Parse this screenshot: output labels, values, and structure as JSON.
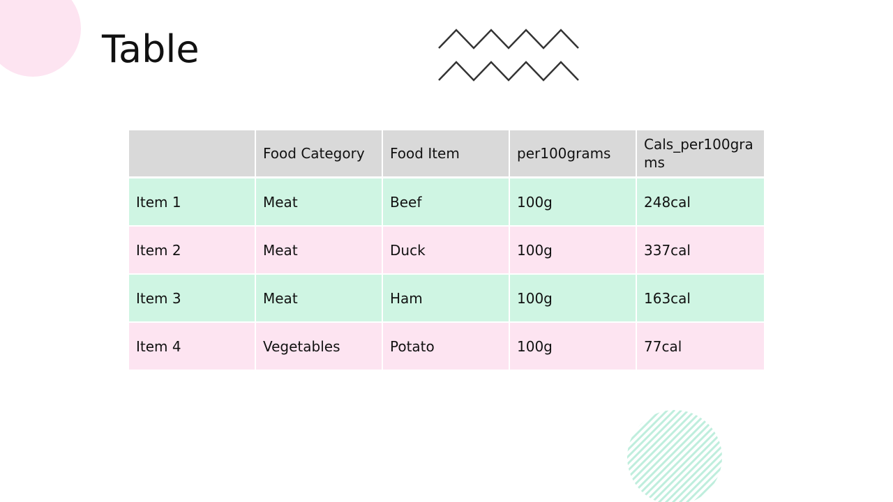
{
  "slide": {
    "title": "Table"
  },
  "colors": {
    "accent_pink": "#fde4f1",
    "accent_green": "#cff5e3",
    "header_gray": "#d9d9d9",
    "zigzag_stroke": "#333333",
    "hatch_green": "#bfeedd"
  },
  "icons": {
    "corner": "circle-decoration-icon",
    "zigzag": "zigzag-decoration-icon",
    "hatch": "hatched-circle-decoration-icon"
  },
  "table": {
    "headers": [
      "",
      "Food Category",
      "Food Item",
      "per100grams",
      "Cals_per100grams"
    ],
    "rows": [
      {
        "item": "Item 1",
        "category": "Meat",
        "food": "Beef",
        "per100grams": "100g",
        "cals": "248cal",
        "band": "green"
      },
      {
        "item": "Item 2",
        "category": "Meat",
        "food": "Duck",
        "per100grams": "100g",
        "cals": "337cal",
        "band": "pink"
      },
      {
        "item": "Item 3",
        "category": "Meat",
        "food": "Ham",
        "per100grams": "100g",
        "cals": "163cal",
        "band": "green"
      },
      {
        "item": "Item 4",
        "category": "Vegetables",
        "food": "Potato",
        "per100grams": "100g",
        "cals": "77cal",
        "band": "pink"
      }
    ]
  }
}
